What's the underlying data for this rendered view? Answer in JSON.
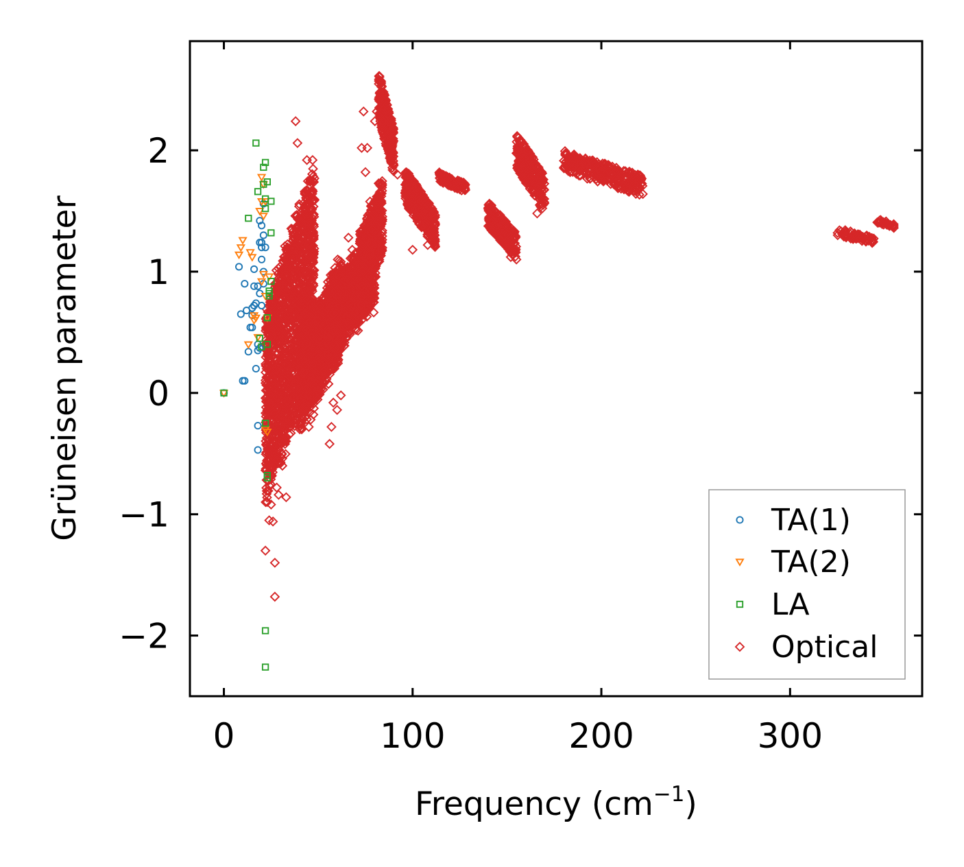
{
  "chart_data": {
    "type": "scatter",
    "title": "",
    "xlabel": "Frequency (cm",
    "xlabel_sup": "−1",
    "xlabel_close": ")",
    "ylabel": "Grüneisen parameter",
    "xlim": [
      -18,
      370
    ],
    "ylim": [
      -2.5,
      2.9
    ],
    "xticks": [
      0,
      100,
      200,
      300
    ],
    "yticks": [
      -2,
      -1,
      0,
      1,
      2
    ],
    "xtick_labels": [
      "0",
      "100",
      "200",
      "300"
    ],
    "ytick_labels": [
      "−2",
      "−1",
      "0",
      "1",
      "2"
    ],
    "grid": false,
    "legend_position": "lower-right",
    "series": [
      {
        "name": "TA(1)",
        "marker": "circle",
        "color": "#1f77b4",
        "points": [
          [
            0,
            0
          ],
          [
            8,
            1.04
          ],
          [
            9,
            0.65
          ],
          [
            10,
            0.1
          ],
          [
            11,
            0.1
          ],
          [
            11,
            0.9
          ],
          [
            12,
            0.68
          ],
          [
            13,
            0.34
          ],
          [
            14,
            0.54
          ],
          [
            15,
            0.54
          ],
          [
            15,
            0.64
          ],
          [
            15,
            0.7
          ],
          [
            16,
            0.88
          ],
          [
            16,
            1.02
          ],
          [
            16,
            0.72
          ],
          [
            17,
            0.74
          ],
          [
            17,
            0.2
          ],
          [
            18,
            0.35
          ],
          [
            18,
            0.4
          ],
          [
            18,
            0.88
          ],
          [
            19,
            0.82
          ],
          [
            19,
            0.37
          ],
          [
            19,
            1.24
          ],
          [
            19,
            1.42
          ],
          [
            20,
            1.38
          ],
          [
            20,
            1.24
          ],
          [
            20,
            1.2
          ],
          [
            20,
            1.1
          ],
          [
            21,
            1.56
          ],
          [
            21,
            1.0
          ],
          [
            21,
            0.9
          ],
          [
            18,
            -0.27
          ],
          [
            18,
            -0.47
          ],
          [
            21,
            1.3
          ],
          [
            22,
            1.2
          ],
          [
            20,
            0.72
          ]
        ]
      },
      {
        "name": "TA(2)",
        "marker": "triangle-down",
        "color": "#ff7f0e",
        "points": [
          [
            0,
            0
          ],
          [
            8,
            1.14
          ],
          [
            9,
            1.2
          ],
          [
            10,
            1.26
          ],
          [
            13,
            0.4
          ],
          [
            14,
            1.16
          ],
          [
            15,
            1.12
          ],
          [
            16,
            0.6
          ],
          [
            16,
            0.64
          ],
          [
            17,
            0.62
          ],
          [
            18,
            0.46
          ],
          [
            19,
            1.5
          ],
          [
            20,
            1.58
          ],
          [
            20,
            1.78
          ],
          [
            20,
            0.92
          ],
          [
            21,
            0.98
          ],
          [
            21,
            1.46
          ],
          [
            22,
            1.58
          ],
          [
            22,
            0.8
          ],
          [
            22,
            -0.3
          ],
          [
            23,
            -0.32
          ],
          [
            23,
            0.62
          ],
          [
            24,
            0.96
          ],
          [
            21,
            1.72
          ]
        ]
      },
      {
        "name": "LA",
        "marker": "square",
        "color": "#2ca02c",
        "points": [
          [
            0,
            0
          ],
          [
            13,
            1.44
          ],
          [
            17,
            2.06
          ],
          [
            18,
            1.66
          ],
          [
            19,
            0.45
          ],
          [
            20,
            0.38
          ],
          [
            21,
            1.86
          ],
          [
            21,
            1.72
          ],
          [
            22,
            1.9
          ],
          [
            22,
            1.6
          ],
          [
            22,
            1.52
          ],
          [
            22,
            -0.25
          ],
          [
            22,
            -1.96
          ],
          [
            22,
            -2.26
          ],
          [
            23,
            -0.68
          ],
          [
            23,
            -0.7
          ],
          [
            23,
            0.62
          ],
          [
            23,
            0.4
          ],
          [
            24,
            0.84
          ],
          [
            24,
            0.82
          ],
          [
            24,
            0.8
          ],
          [
            25,
            0.92
          ],
          [
            25,
            1.32
          ],
          [
            25,
            1.58
          ],
          [
            23,
            1.74
          ]
        ]
      },
      {
        "name": "Optical",
        "marker": "diamond",
        "color": "#d62728",
        "clusters": [
          {
            "x": [
              22,
              48
            ],
            "y": [
              -0.9,
              2.0
            ],
            "density": 1600
          },
          {
            "x": [
              40,
              62
            ],
            "y": [
              -0.3,
              1.1
            ],
            "density": 1100
          },
          {
            "x": [
              55,
              80
            ],
            "y": [
              0.3,
              1.3
            ],
            "density": 1000
          },
          {
            "x": [
              72,
              84
            ],
            "y": [
              0.7,
              1.8
            ],
            "density": 450
          }
        ],
        "bands": [
          {
            "x": [
              82,
              90
            ],
            "y": [
              1.8,
              2.65
            ],
            "n": 320
          },
          {
            "x": [
              96,
              112
            ],
            "y": [
              1.2,
              1.85
            ],
            "n": 420
          },
          {
            "x": [
              114,
              128
            ],
            "y": [
              1.65,
              1.82
            ],
            "n": 110
          },
          {
            "x": [
              140,
              155
            ],
            "y": [
              1.1,
              1.58
            ],
            "n": 230
          },
          {
            "x": [
              155,
              170
            ],
            "y": [
              1.48,
              2.16
            ],
            "n": 260
          },
          {
            "x": [
              180,
              222
            ],
            "y": [
              1.62,
              2.0
            ],
            "n": 320
          },
          {
            "x": [
              325,
              345
            ],
            "y": [
              1.22,
              1.36
            ],
            "n": 70
          },
          {
            "x": [
              346,
              355
            ],
            "y": [
              1.36,
              1.44
            ],
            "n": 30
          }
        ],
        "outliers": [
          [
            22,
            -1.3
          ],
          [
            24,
            -1.05
          ],
          [
            26,
            -1.06
          ],
          [
            27,
            -1.4
          ],
          [
            27,
            -1.68
          ],
          [
            25,
            -0.92
          ],
          [
            28,
            -0.78
          ],
          [
            29,
            -0.84
          ],
          [
            33,
            -0.86
          ],
          [
            30,
            -0.58
          ],
          [
            31,
            -0.6
          ],
          [
            38,
            2.24
          ],
          [
            39,
            2.06
          ],
          [
            44,
            1.92
          ],
          [
            47,
            1.92
          ],
          [
            66,
            1.28
          ],
          [
            68,
            1.18
          ],
          [
            73,
            0.88
          ],
          [
            75,
            0.66
          ],
          [
            56,
            -0.42
          ],
          [
            57,
            -0.28
          ],
          [
            58,
            -0.08
          ],
          [
            60,
            -0.14
          ],
          [
            62,
            -0.02
          ],
          [
            74,
            2.32
          ],
          [
            75,
            1.82
          ],
          [
            76,
            2.02
          ],
          [
            73,
            2.02
          ],
          [
            80,
            2.24
          ],
          [
            81,
            2.32
          ],
          [
            117,
            1.78
          ],
          [
            152,
            1.12
          ],
          [
            155,
            1.1
          ],
          [
            150,
            1.2
          ],
          [
            45,
            -0.28
          ],
          [
            46,
            -0.22
          ],
          [
            50,
            0.02
          ],
          [
            53,
            0.18
          ],
          [
            92,
            1.8
          ],
          [
            100,
            1.18
          ],
          [
            108,
            1.22
          ],
          [
            166,
            1.48
          ],
          [
            168,
            1.56
          ],
          [
            183,
            1.86
          ],
          [
            222,
            1.64
          ]
        ]
      }
    ]
  }
}
